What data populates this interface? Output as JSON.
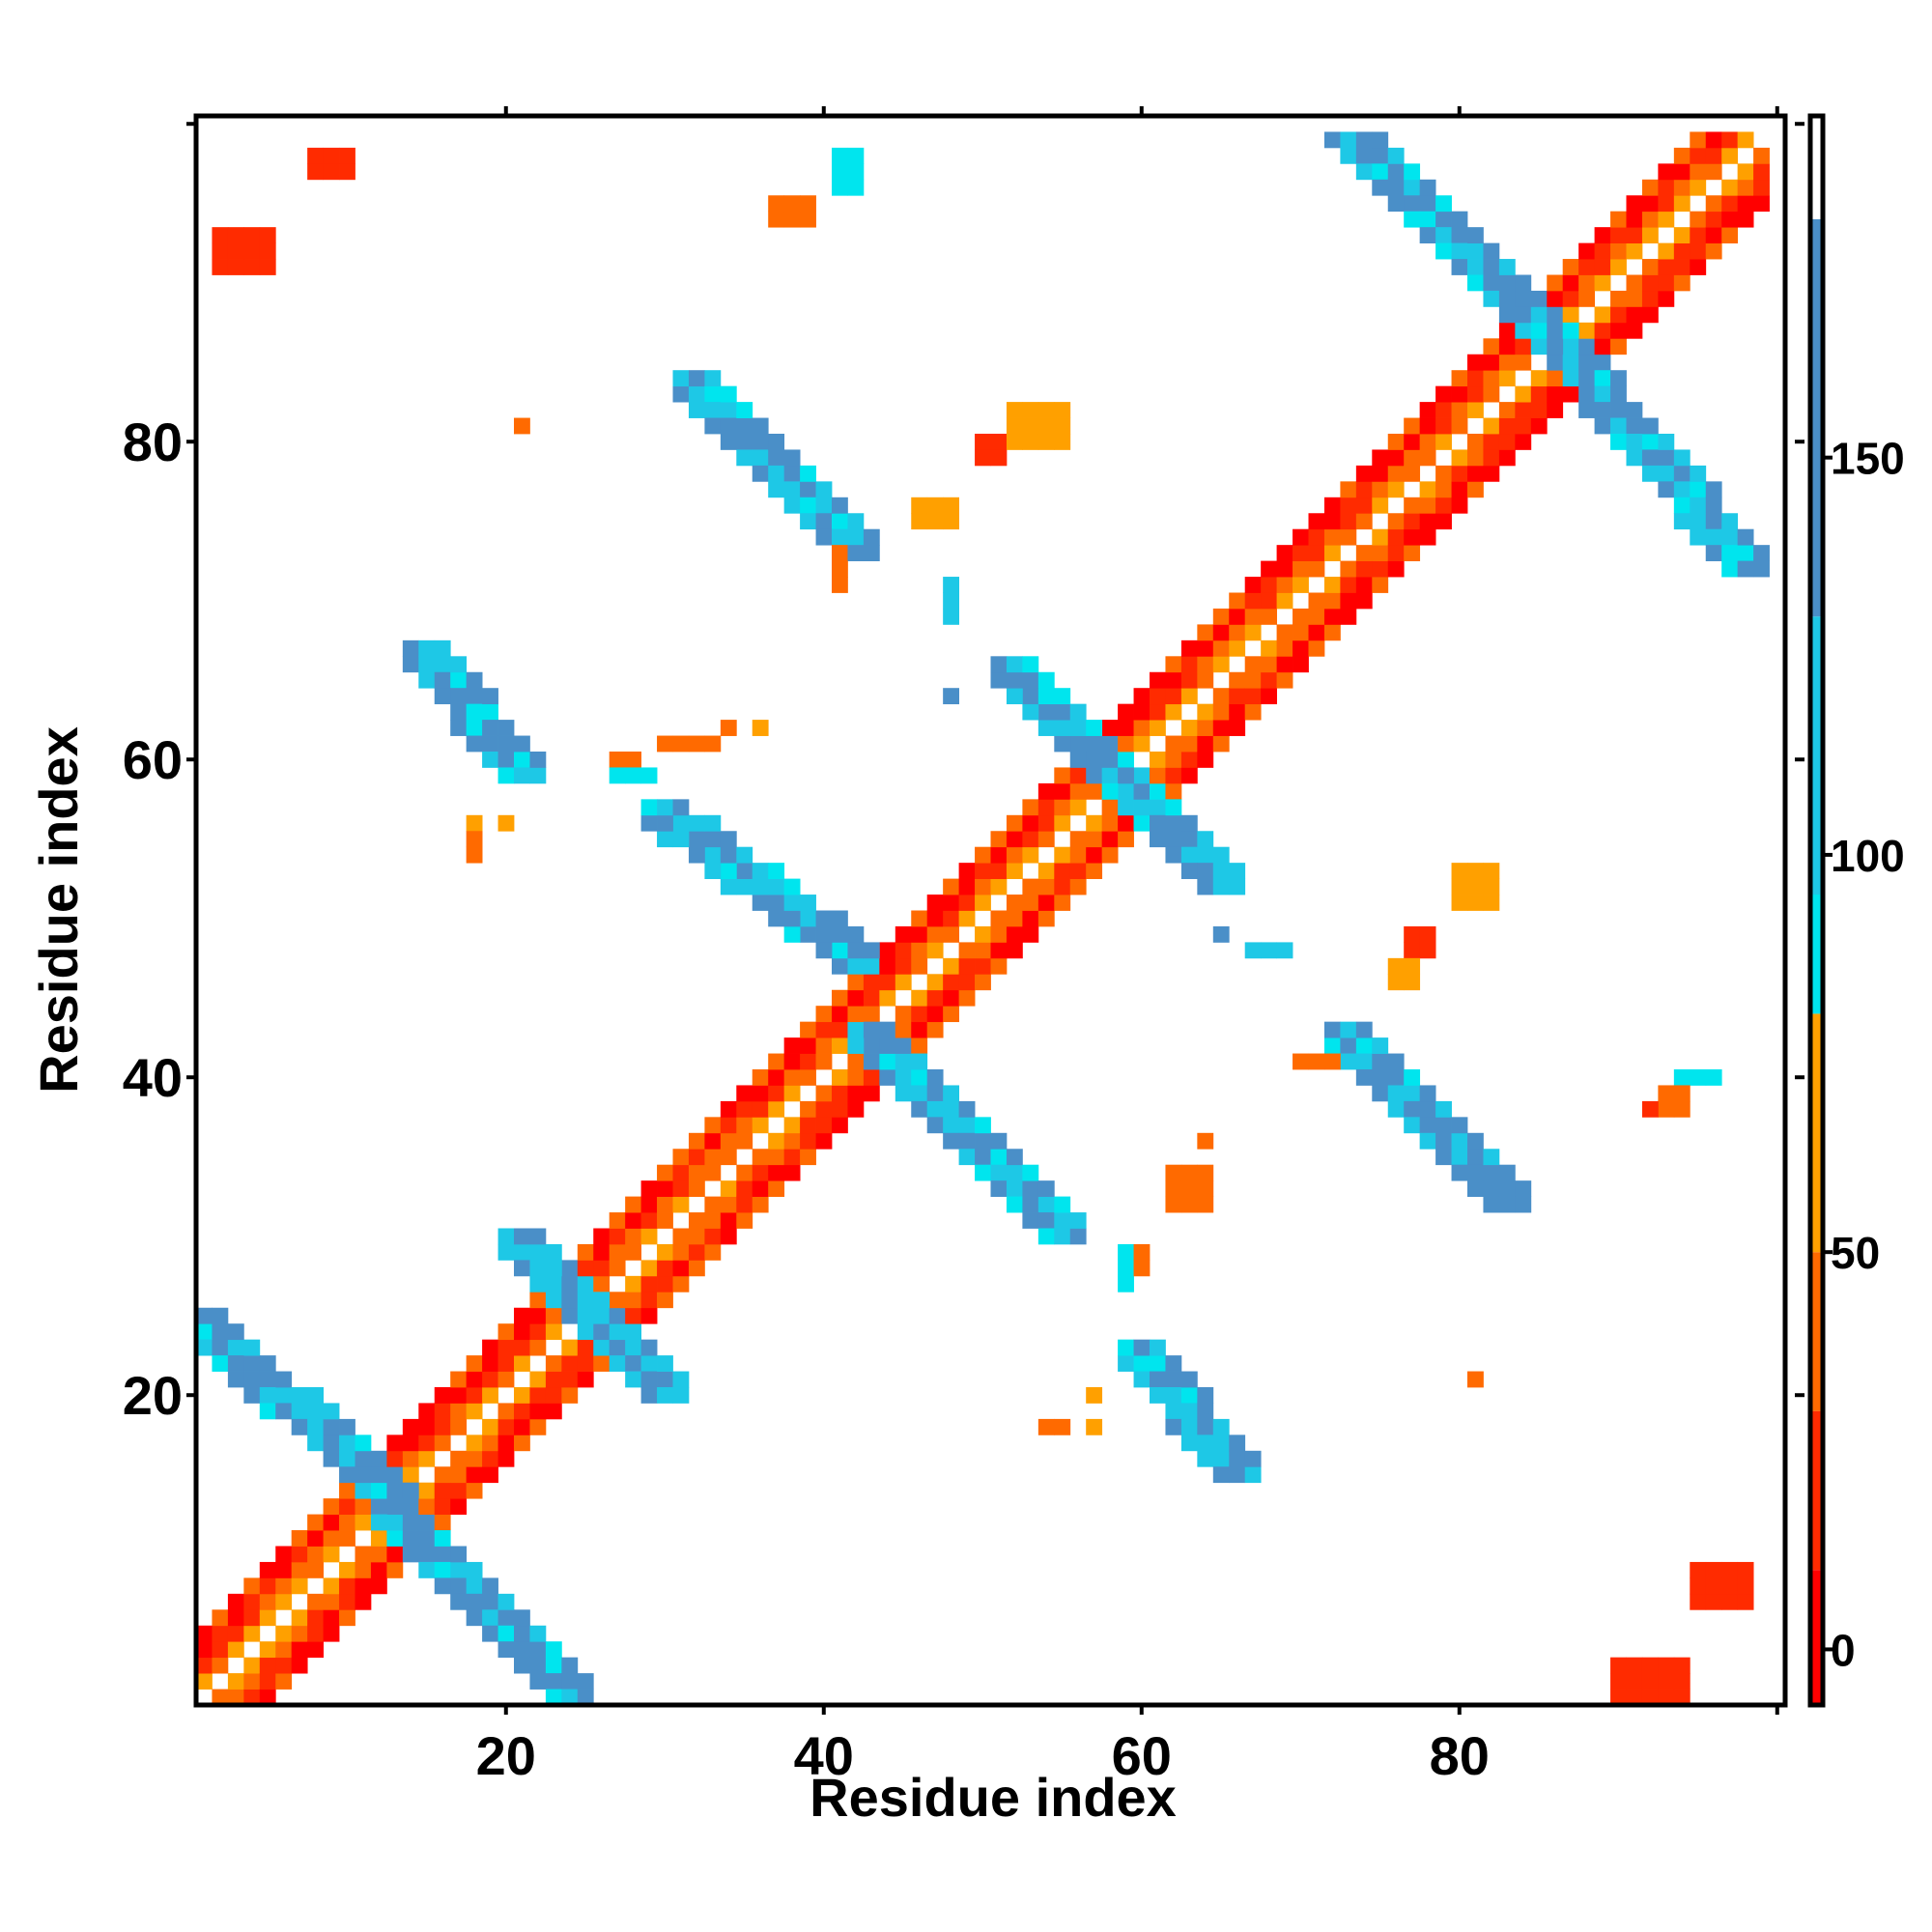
{
  "chart_data": {
    "type": "heatmap",
    "title": "",
    "xlabel": "Residue index",
    "ylabel": "Residue index",
    "xlim": [
      0.5,
      100.5
    ],
    "ylim": [
      0.5,
      100.5
    ],
    "x_ticks": [
      "20",
      "40",
      "60",
      "80"
    ],
    "y_ticks": [
      "20",
      "40",
      "60",
      "80"
    ],
    "x_tick_values": [
      20,
      40,
      60,
      80
    ],
    "y_tick_values": [
      20,
      40,
      60,
      80
    ],
    "colorbar": {
      "tick_labels": [
        "0",
        "50",
        "100",
        "150"
      ],
      "tick_values": [
        0,
        50,
        100,
        150
      ],
      "range": [
        -7,
        193
      ],
      "bands": [
        {
          "from": -7,
          "to": 10,
          "color": "#ff0000"
        },
        {
          "from": 10,
          "to": 30,
          "color": "#ff2b00"
        },
        {
          "from": 30,
          "to": 50,
          "color": "#ff6a00"
        },
        {
          "from": 50,
          "to": 80,
          "color": "#ffa000"
        },
        {
          "from": 80,
          "to": 95,
          "color": "#00e5ee"
        },
        {
          "from": 95,
          "to": 130,
          "color": "#1ec8e6"
        },
        {
          "from": 130,
          "to": 180,
          "color": "#4a8fc8"
        },
        {
          "from": 180,
          "to": 193,
          "color": "#ffffff"
        }
      ]
    },
    "segments": [
      {
        "x0": 1,
        "y0": 1,
        "x1": 99,
        "y1": 99,
        "w": 4,
        "kind": "diag"
      },
      {
        "x0": 1,
        "y0": 24,
        "x1": 13,
        "y1": 13,
        "w": 3,
        "kind": "blue"
      },
      {
        "x0": 13,
        "y0": 12,
        "x1": 24,
        "y1": 1,
        "w": 3,
        "kind": "blue"
      },
      {
        "x0": 21,
        "y0": 29,
        "x1": 30,
        "y1": 20,
        "w": 3,
        "kind": "cyan"
      },
      {
        "x0": 42,
        "y0": 47,
        "x1": 30,
        "y1": 56,
        "w": 3,
        "kind": "blue"
      },
      {
        "x0": 43,
        "y0": 42,
        "x1": 55,
        "y1": 30,
        "w": 3,
        "kind": "blue"
      },
      {
        "x0": 58,
        "y0": 59,
        "x1": 52,
        "y1": 65,
        "w": 3,
        "kind": "blue"
      },
      {
        "x0": 59,
        "y0": 58,
        "x1": 65,
        "y1": 52,
        "w": 3,
        "kind": "blue"
      },
      {
        "x0": 15,
        "y0": 66,
        "x1": 21,
        "y1": 59,
        "w": 3,
        "kind": "blue"
      },
      {
        "x0": 60,
        "y0": 22,
        "x1": 66,
        "y1": 15,
        "w": 3,
        "kind": "blue"
      },
      {
        "x0": 32,
        "y0": 83,
        "x1": 42,
        "y1": 73,
        "w": 3,
        "kind": "blue"
      },
      {
        "x0": 73,
        "y0": 42,
        "x1": 83,
        "y1": 32,
        "w": 3,
        "kind": "blue"
      },
      {
        "x0": 73,
        "y0": 99,
        "x1": 85,
        "y1": 87,
        "w": 3,
        "kind": "blue"
      },
      {
        "x0": 86,
        "y0": 86,
        "x1": 98,
        "y1": 72,
        "w": 3,
        "kind": "blue"
      }
    ],
    "spots": [
      {
        "x": 8,
        "y": 97,
        "w": 3,
        "h": 2,
        "v": 20
      },
      {
        "x": 2,
        "y": 91,
        "w": 4,
        "h": 3,
        "v": 20
      },
      {
        "x": 37,
        "y": 94,
        "w": 3,
        "h": 2,
        "v": 40
      },
      {
        "x": 41,
        "y": 96,
        "w": 2,
        "h": 3,
        "v": 90
      },
      {
        "x": 21,
        "y": 81,
        "w": 1,
        "h": 1,
        "v": 40
      },
      {
        "x": 50,
        "y": 79,
        "w": 2,
        "h": 2,
        "v": 20
      },
      {
        "x": 52,
        "y": 80,
        "w": 4,
        "h": 3,
        "v": 50
      },
      {
        "x": 46,
        "y": 75,
        "w": 3,
        "h": 2,
        "v": 50
      },
      {
        "x": 41,
        "y": 71,
        "w": 1,
        "h": 3,
        "v": 40
      },
      {
        "x": 48,
        "y": 69,
        "w": 1,
        "h": 3,
        "v": 110
      },
      {
        "x": 48,
        "y": 64,
        "w": 1,
        "h": 1,
        "v": 140
      },
      {
        "x": 30,
        "y": 61,
        "w": 4,
        "h": 1,
        "v": 40
      },
      {
        "x": 34,
        "y": 62,
        "w": 1,
        "h": 1,
        "v": 40
      },
      {
        "x": 36,
        "y": 62,
        "w": 1,
        "h": 1,
        "v": 50
      },
      {
        "x": 27,
        "y": 60,
        "w": 2,
        "h": 1,
        "v": 40
      },
      {
        "x": 27,
        "y": 59,
        "w": 3,
        "h": 1,
        "v": 90
      },
      {
        "x": 18,
        "y": 56,
        "w": 1,
        "h": 1,
        "v": 60
      },
      {
        "x": 20,
        "y": 56,
        "w": 1,
        "h": 1,
        "v": 60
      },
      {
        "x": 18,
        "y": 54,
        "w": 1,
        "h": 2,
        "v": 40
      },
      {
        "x": 80,
        "y": 51,
        "w": 3,
        "h": 3,
        "v": 60
      },
      {
        "x": 77,
        "y": 48,
        "w": 2,
        "h": 2,
        "v": 10
      },
      {
        "x": 76,
        "y": 46,
        "w": 2,
        "h": 2,
        "v": 60
      },
      {
        "x": 65,
        "y": 49,
        "w": 1,
        "h": 1,
        "v": 140
      },
      {
        "x": 67,
        "y": 48,
        "w": 3,
        "h": 1,
        "v": 110
      },
      {
        "x": 70,
        "y": 41,
        "w": 3,
        "h": 1,
        "v": 30
      },
      {
        "x": 94,
        "y": 40,
        "w": 3,
        "h": 1,
        "v": 90
      },
      {
        "x": 93,
        "y": 38,
        "w": 2,
        "h": 2,
        "v": 40
      },
      {
        "x": 92,
        "y": 38,
        "w": 1,
        "h": 1,
        "v": 10
      },
      {
        "x": 64,
        "y": 36,
        "w": 1,
        "h": 1,
        "v": 40
      },
      {
        "x": 62,
        "y": 32,
        "w": 3,
        "h": 3,
        "v": 40
      },
      {
        "x": 59,
        "y": 27,
        "w": 1,
        "h": 3,
        "v": 90
      },
      {
        "x": 60,
        "y": 28,
        "w": 1,
        "h": 2,
        "v": 40
      },
      {
        "x": 81,
        "y": 21,
        "w": 1,
        "h": 1,
        "v": 40
      },
      {
        "x": 57,
        "y": 20,
        "w": 1,
        "h": 1,
        "v": 60
      },
      {
        "x": 54,
        "y": 18,
        "w": 2,
        "h": 1,
        "v": 40
      },
      {
        "x": 57,
        "y": 18,
        "w": 1,
        "h": 1,
        "v": 60
      },
      {
        "x": 95,
        "y": 7,
        "w": 4,
        "h": 3,
        "v": 20
      },
      {
        "x": 90,
        "y": 1,
        "w": 5,
        "h": 3,
        "v": 20
      }
    ]
  }
}
